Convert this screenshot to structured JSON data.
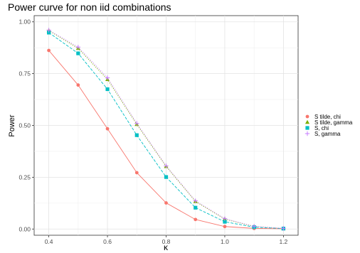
{
  "chart_data": {
    "type": "line",
    "title": "Power curve for non iid combinations",
    "xlabel": "κ",
    "ylabel": "Power",
    "xlim": [
      0.35,
      1.25
    ],
    "ylim": [
      -0.03,
      1.03
    ],
    "x": [
      0.4,
      0.5,
      0.6,
      0.7,
      0.8,
      0.9,
      1.0,
      1.1,
      1.2
    ],
    "x_ticks": [
      {
        "value": 0.4,
        "label": "0.4"
      },
      {
        "value": 0.6,
        "label": "0.6"
      },
      {
        "value": 0.8,
        "label": "0.8"
      },
      {
        "value": 1.0,
        "label": "1.0"
      },
      {
        "value": 1.2,
        "label": "1.2"
      }
    ],
    "y_ticks": [
      {
        "value": 0.0,
        "label": "0.00"
      },
      {
        "value": 0.25,
        "label": "0.25"
      },
      {
        "value": 0.5,
        "label": "0.50"
      },
      {
        "value": 0.75,
        "label": "0.75"
      },
      {
        "value": 1.0,
        "label": "1.00"
      }
    ],
    "grid": true,
    "legend_position": "right",
    "series": [
      {
        "name": "S tilde, chi",
        "color": "#F8766D",
        "marker": "circle",
        "line": "solid",
        "values": [
          0.862,
          0.695,
          0.484,
          0.272,
          0.126,
          0.046,
          0.012,
          0.003,
          0.001
        ]
      },
      {
        "name": "S tilde, gamma",
        "color": "#7CAE00",
        "marker": "triangle",
        "line": "dotted",
        "values": [
          0.958,
          0.872,
          0.722,
          0.505,
          0.302,
          0.133,
          0.048,
          0.012,
          0.003
        ]
      },
      {
        "name": "S, chi",
        "color": "#00BFC4",
        "marker": "square",
        "line": "dashed",
        "values": [
          0.948,
          0.848,
          0.675,
          0.453,
          0.251,
          0.103,
          0.035,
          0.009,
          0.002
        ]
      },
      {
        "name": "S, gamma",
        "color": "#C77CFF",
        "marker": "plus",
        "line": "dotted",
        "values": [
          0.96,
          0.878,
          0.73,
          0.51,
          0.305,
          0.136,
          0.05,
          0.013,
          0.003
        ]
      }
    ]
  }
}
